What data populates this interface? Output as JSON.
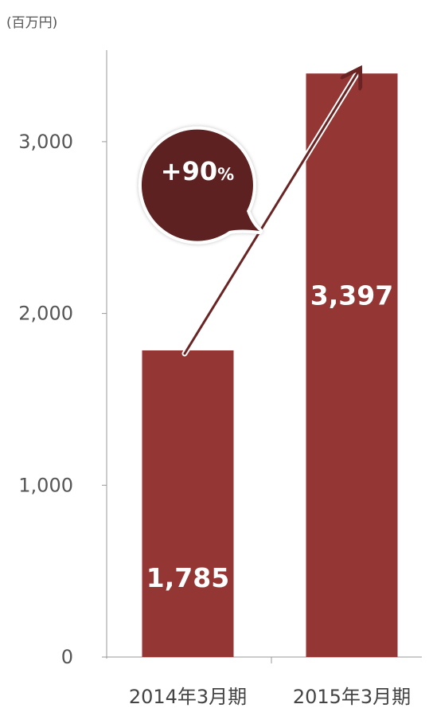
{
  "chart_data": {
    "type": "bar",
    "unit_label": "(百万円)",
    "categories": [
      "2014年3月期",
      "2015年3月期"
    ],
    "values": [
      1785,
      3397
    ],
    "value_labels": [
      "1,785",
      "3,397"
    ],
    "ylim": [
      0,
      3500
    ],
    "yticks": [
      0,
      1000,
      2000,
      3000
    ],
    "ytick_labels": [
      "0",
      "1,000",
      "2,000",
      "3,000"
    ],
    "grid": false,
    "annotation": {
      "text_main": "+90",
      "text_suffix": "%",
      "from_category": 0,
      "to_category": 1
    },
    "colors": {
      "bar": "#943634",
      "bubble": "#5e2121",
      "arrow": "#6b2424",
      "axis": "#999999"
    }
  }
}
